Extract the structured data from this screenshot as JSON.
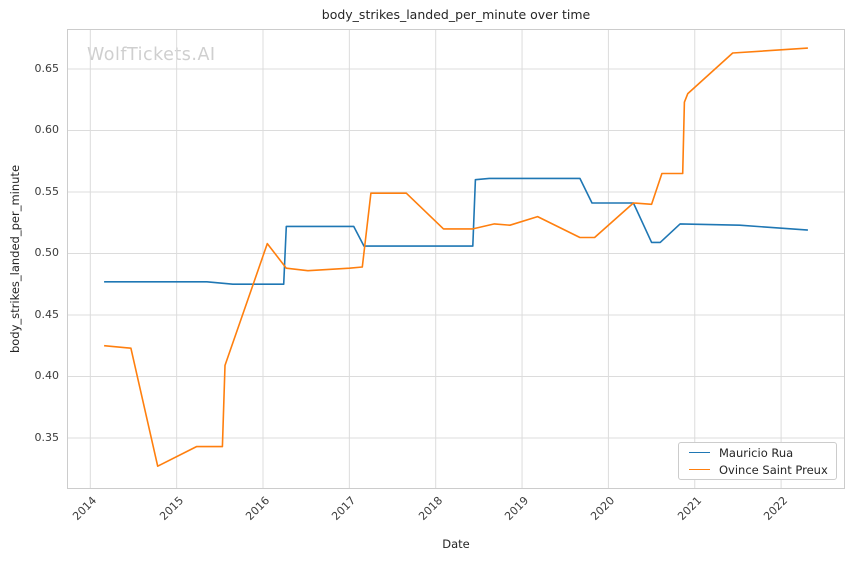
{
  "watermark": "WolfTickets.AI",
  "chart_data": {
    "type": "line",
    "title": "body_strikes_landed_per_minute over time",
    "xlabel": "Date",
    "ylabel": "body_strikes_landed_per_minute",
    "xlim": [
      2013.73,
      2022.74
    ],
    "ylim": [
      0.3085,
      0.6825
    ],
    "x_ticks": [
      2014,
      2015,
      2016,
      2017,
      2018,
      2019,
      2020,
      2021,
      2022
    ],
    "y_ticks": [
      0.35,
      0.4,
      0.45,
      0.5,
      0.55,
      0.6,
      0.65
    ],
    "grid": true,
    "legend_position": "lower right",
    "colors": {
      "grid": "#dcdcdc",
      "spine": "#cccccc",
      "text": "#262626",
      "tick_text": "#3b3b3b",
      "watermark": "#cfcfcf"
    },
    "series": [
      {
        "name": "Mauricio Rua",
        "color": "#1f77b4",
        "points": [
          [
            2014.16,
            0.477
          ],
          [
            2015.35,
            0.477
          ],
          [
            2015.65,
            0.475
          ],
          [
            2016.24,
            0.475
          ],
          [
            2016.27,
            0.522
          ],
          [
            2017.05,
            0.522
          ],
          [
            2017.17,
            0.506
          ],
          [
            2018.43,
            0.506
          ],
          [
            2018.46,
            0.56
          ],
          [
            2018.62,
            0.561
          ],
          [
            2019.67,
            0.561
          ],
          [
            2019.81,
            0.541
          ],
          [
            2020.29,
            0.541
          ],
          [
            2020.5,
            0.509
          ],
          [
            2020.6,
            0.509
          ],
          [
            2020.83,
            0.524
          ],
          [
            2021.52,
            0.523
          ],
          [
            2022.31,
            0.519
          ]
        ]
      },
      {
        "name": "Ovince Saint Preux",
        "color": "#ff7f0e",
        "points": [
          [
            2014.16,
            0.425
          ],
          [
            2014.47,
            0.423
          ],
          [
            2014.78,
            0.327
          ],
          [
            2015.23,
            0.343
          ],
          [
            2015.53,
            0.343
          ],
          [
            2015.56,
            0.409
          ],
          [
            2016.05,
            0.508
          ],
          [
            2016.27,
            0.488
          ],
          [
            2016.52,
            0.486
          ],
          [
            2017.0,
            0.488
          ],
          [
            2017.15,
            0.489
          ],
          [
            2017.25,
            0.549
          ],
          [
            2017.66,
            0.549
          ],
          [
            2018.09,
            0.52
          ],
          [
            2018.43,
            0.52
          ],
          [
            2018.68,
            0.524
          ],
          [
            2018.86,
            0.523
          ],
          [
            2019.18,
            0.53
          ],
          [
            2019.67,
            0.513
          ],
          [
            2019.84,
            0.513
          ],
          [
            2020.29,
            0.541
          ],
          [
            2020.5,
            0.54
          ],
          [
            2020.62,
            0.565
          ],
          [
            2020.86,
            0.565
          ],
          [
            2020.88,
            0.623
          ],
          [
            2020.92,
            0.63
          ],
          [
            2021.44,
            0.663
          ],
          [
            2022.31,
            0.667
          ]
        ]
      }
    ]
  }
}
